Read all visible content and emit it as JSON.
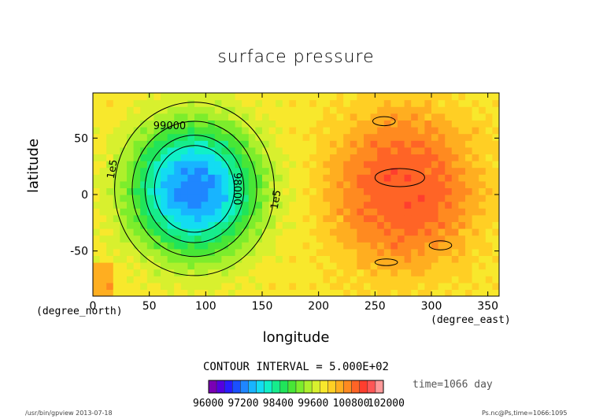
{
  "chart_data": {
    "type": "heatmap",
    "title": "surface pressure",
    "xlabel": "longitude",
    "ylabel": "latitude",
    "x_units": "(degree_east)",
    "y_units": "(degree_north)",
    "xlim": [
      0,
      360
    ],
    "ylim": [
      -90,
      90
    ],
    "x_ticks": [
      "0",
      "50",
      "100",
      "150",
      "200",
      "250",
      "300",
      "350"
    ],
    "y_ticks": [
      "50",
      "0",
      "-50"
    ],
    "contour_interval_text": "CONTOUR INTERVAL = 5.000E+02",
    "time_text": "time=1066 day",
    "contour_labels": [
      "99000",
      "98000",
      "1e5",
      "1e5"
    ],
    "colorbar": {
      "range": [
        96000,
        102000
      ],
      "tick_labels": [
        "96000",
        "97200",
        "98400",
        "99600",
        "100800",
        "102000"
      ],
      "tick_values": [
        96000,
        97200,
        98400,
        99600,
        100800,
        102000
      ],
      "colors": [
        "#7a00b4",
        "#5500e0",
        "#2a1cff",
        "#1a50ff",
        "#1f86ff",
        "#18b4ff",
        "#13dcf2",
        "#10f0c8",
        "#16ec8c",
        "#20e45a",
        "#48e636",
        "#7ced2c",
        "#aef02c",
        "#d8f02e",
        "#f8e82c",
        "#ffcf24",
        "#ffae20",
        "#ff8a20",
        "#ff6426",
        "#ff3e2e",
        "#ff5656",
        "#ff9a9a"
      ],
      "bin_edges": [
        96000,
        96300,
        96600,
        96900,
        97200,
        97500,
        97800,
        98100,
        98400,
        98700,
        99000,
        99300,
        99600,
        99900,
        100200,
        100500,
        100800,
        101100,
        101400,
        101700,
        102000
      ]
    },
    "features": [
      {
        "kind": "low",
        "center": [
          90,
          5
        ],
        "radius_lon": 58,
        "radius_lat": 60,
        "min": 97300
      },
      {
        "kind": "high",
        "center": [
          275,
          5
        ],
        "radius_lon": 65,
        "radius_lat": 70,
        "max": 101600
      }
    ]
  },
  "footer": {
    "left": "/usr/bin/gpview  2013-07-18",
    "right": "Ps.nc@Ps,time=1066:1095"
  }
}
